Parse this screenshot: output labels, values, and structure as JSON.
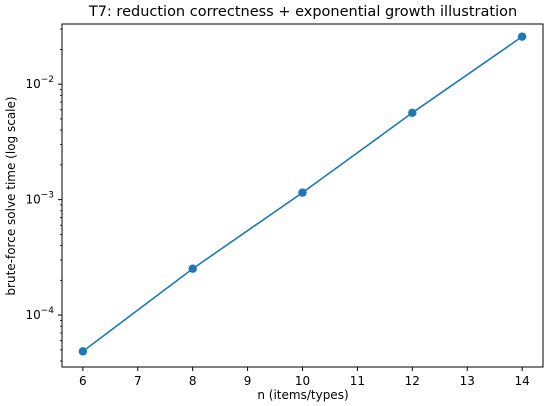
{
  "chart_data": {
    "type": "line",
    "title": "T7: reduction correctness + exponential growth illustration",
    "xlabel": "n (items/types)",
    "ylabel": "brute-force solve time (log scale)",
    "x": [
      6,
      8,
      10,
      12,
      14
    ],
    "series": [
      {
        "values": [
          4.85e-05,
          0.000252,
          0.00115,
          0.00565,
          0.0258
        ]
      }
    ],
    "xlim": [
      5.62,
      14.38
    ],
    "ylim": [
      3.55e-05,
      0.0332
    ],
    "yscale": "log",
    "xticks": [
      6,
      7,
      8,
      9,
      10,
      11,
      12,
      13,
      14
    ],
    "xtick_labels": [
      "6",
      "7",
      "8",
      "9",
      "10",
      "11",
      "12",
      "13",
      "14"
    ],
    "yticks": [
      0.0001,
      0.001,
      0.01
    ],
    "ytick_labels": [
      {
        "base": "10",
        "exp": "−4"
      },
      {
        "base": "10",
        "exp": "−3"
      },
      {
        "base": "10",
        "exp": "−2"
      }
    ],
    "grid": false,
    "line_color": "#1f77b4",
    "marker": "circle"
  }
}
